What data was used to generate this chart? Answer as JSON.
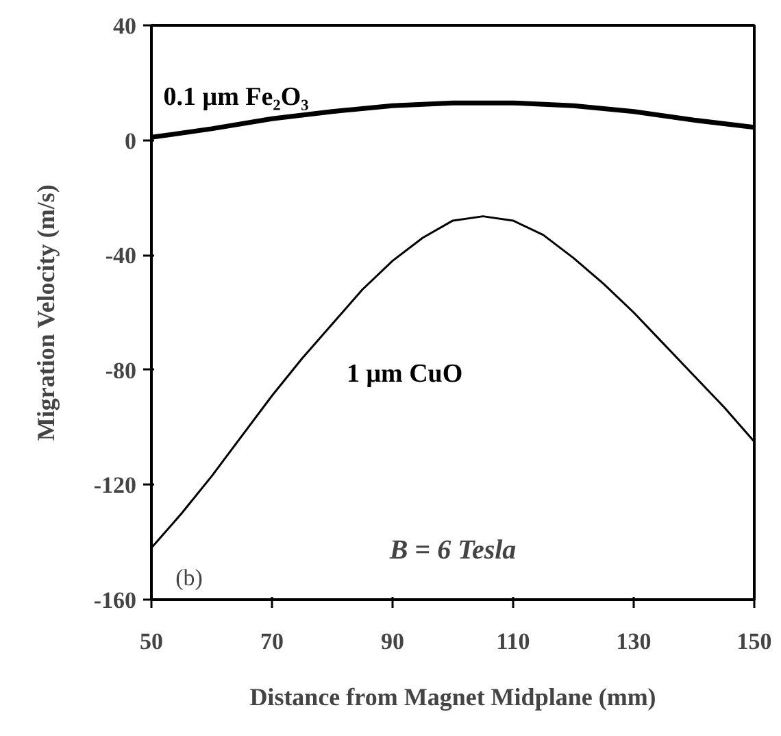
{
  "chart_data": {
    "type": "line",
    "xlabel": "Distance from Magnet Midplane (mm)",
    "ylabel": "Migration Velocity (m/s)",
    "xlim": [
      50,
      150
    ],
    "xticks": [
      50,
      70,
      90,
      110,
      130,
      150
    ],
    "ylim": [
      -160,
      40
    ],
    "yticks": [
      -160,
      -120,
      -80,
      -40,
      0,
      40
    ],
    "grid": false,
    "marker": "none",
    "line_style": "solid",
    "series": [
      {
        "name": "0.1 μm Fe₂O₃",
        "color": "#000000",
        "x": [
          50,
          60,
          70,
          80,
          90,
          100,
          110,
          120,
          130,
          140,
          150
        ],
        "values": [
          1,
          4,
          7.5,
          10,
          12,
          13,
          13,
          12,
          10,
          7,
          4.5
        ]
      },
      {
        "name": "1 μm CuO",
        "color": "#000000",
        "x": [
          50,
          55,
          60,
          65,
          70,
          75,
          80,
          85,
          90,
          95,
          100,
          105,
          110,
          115,
          120,
          125,
          130,
          135,
          140,
          145,
          150
        ],
        "values": [
          -142,
          -130,
          -117,
          -103,
          -89,
          -76,
          -64,
          -52,
          -42,
          -34,
          -28,
          -26.5,
          -28,
          -33,
          -41,
          -50,
          -60,
          -71,
          -82,
          -93,
          -105
        ]
      }
    ],
    "annotations": [
      "B = 6 Tesla",
      "(b)"
    ]
  }
}
